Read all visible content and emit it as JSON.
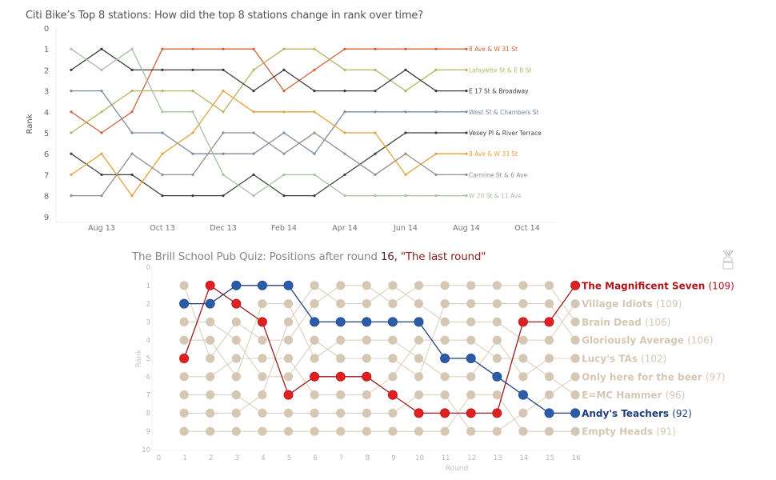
{
  "titles": {
    "top": "Citi Bike’s Top 8 stations: How did the top 8 stations change in rank over time?",
    "bottom_prefix": "The Brill School Pub Quiz: Positions after round ",
    "bottom_round": "16,",
    "bottom_round_name": " \"The last round\""
  },
  "icons": {
    "corner": "trophy-icon"
  },
  "chart_data": [
    {
      "type": "line",
      "title": "Citi Bike’s Top 8 stations: How did the top 8 stations change in rank over time?",
      "xlabel": "",
      "ylabel": "Rank",
      "x": [
        "Jul 13",
        "Aug 13",
        "Sep 13",
        "Oct 13",
        "Nov 13",
        "Dec 13",
        "Jan 14",
        "Feb 14",
        "Mar 14",
        "Apr 14",
        "May 14",
        "Jun 14",
        "Jul 14",
        "Aug 14"
      ],
      "xticks": [
        "Aug 13",
        "Oct 13",
        "Dec 13",
        "Feb 14",
        "Apr 14",
        "Jun 14",
        "Aug 14",
        "Oct 14"
      ],
      "yticks": [
        "0",
        "1",
        "2",
        "3",
        "4",
        "5",
        "6",
        "7",
        "8",
        "9"
      ],
      "ylim": [
        0,
        9
      ],
      "y_reversed": true,
      "grid": false,
      "legend": "end-of-line labels (right)",
      "series": [
        {
          "name": "8 Ave & W 31 St",
          "color": "#d0643a",
          "values": [
            4,
            5,
            4,
            1,
            1,
            1,
            1,
            3,
            2,
            1,
            1,
            1,
            1,
            1
          ]
        },
        {
          "name": "Lafayette St & E 8 St",
          "color": "#b8b35e",
          "values": [
            5,
            4,
            3,
            3,
            3,
            4,
            2,
            1,
            1,
            2,
            2,
            3,
            2,
            2
          ]
        },
        {
          "name": "E 17 St & Broadway",
          "color": "#3a3a3a",
          "values": [
            2,
            1,
            2,
            2,
            2,
            2,
            3,
            2,
            3,
            3,
            3,
            2,
            3,
            3
          ]
        },
        {
          "name": "West St & Chambers St",
          "color": "#7a8aa3",
          "values": [
            3,
            3,
            5,
            5,
            6,
            6,
            6,
            5,
            6,
            4,
            4,
            4,
            4,
            4
          ]
        },
        {
          "name": "Vesey Pl & River Terrace",
          "color": "#36463a",
          "values": [
            6,
            7,
            7,
            8,
            8,
            8,
            7,
            8,
            8,
            7,
            6,
            5,
            5,
            5
          ]
        },
        {
          "name": "8 Ave & W 33 St",
          "color": "#e5a23c",
          "values": [
            7,
            6,
            8,
            6,
            5,
            3,
            4,
            4,
            4,
            5,
            5,
            7,
            6,
            6
          ]
        },
        {
          "name": "Carmine St & 6 Ave",
          "color": "#9a8d83",
          "values": [
            8,
            8,
            6,
            7,
            7,
            5,
            5,
            6,
            5,
            6,
            7,
            6,
            7,
            7
          ]
        },
        {
          "name": "W 20 St & 11 Ave",
          "color": "#a7bfa2",
          "values": [
            1,
            2,
            1,
            4,
            4,
            7,
            8,
            7,
            7,
            8,
            8,
            8,
            8,
            8
          ]
        }
      ]
    },
    {
      "type": "line",
      "title": "The Brill School Pub Quiz: Positions after round 16, \"The last round\"",
      "xlabel": "Round",
      "ylabel": "Rank",
      "x": [
        1,
        2,
        3,
        4,
        5,
        6,
        7,
        8,
        9,
        10,
        11,
        12,
        13,
        14,
        15,
        16
      ],
      "xticks": [
        "0",
        "1",
        "2",
        "3",
        "4",
        "5",
        "6",
        "7",
        "8",
        "9",
        "10",
        "11",
        "12",
        "13",
        "14",
        "15",
        "16"
      ],
      "yticks": [
        "0",
        "1",
        "2",
        "3",
        "4",
        "5",
        "6",
        "7",
        "8",
        "9",
        "10"
      ],
      "xlim": [
        0,
        16
      ],
      "ylim": [
        0,
        10
      ],
      "y_reversed": true,
      "grid": false,
      "legend": "end-of-line labels (right)",
      "default_color": "#d6c7b4",
      "series": [
        {
          "name": "The Magnificent Seven",
          "score": "109",
          "color": "#e02020",
          "label_color": "#b0151a",
          "highlight": true,
          "values": [
            5,
            1,
            2,
            3,
            7,
            6,
            6,
            6,
            7,
            8,
            8,
            8,
            8,
            3,
            3,
            1
          ]
        },
        {
          "name": "Village Idiots",
          "score": "109",
          "color": "#d6c7b4",
          "label_color": "#d6c7b4",
          "highlight": false,
          "values": [
            8,
            8,
            8,
            7,
            3,
            1,
            2,
            2,
            1,
            2,
            3,
            3,
            3,
            4,
            4,
            2
          ]
        },
        {
          "name": "Brain Dead",
          "score": "106",
          "color": "#d6c7b4",
          "label_color": "#d6c7b4",
          "highlight": false,
          "values": [
            1,
            5,
            3,
            4,
            4,
            2,
            1,
            1,
            2,
            1,
            1,
            1,
            1,
            1,
            1,
            3
          ]
        },
        {
          "name": "Gloriously Average",
          "score": "106",
          "color": "#d6c7b4",
          "label_color": "#d6c7b4",
          "highlight": false,
          "values": [
            3,
            3,
            4,
            6,
            6,
            4,
            5,
            5,
            5,
            6,
            2,
            2,
            2,
            2,
            2,
            4
          ]
        },
        {
          "name": "Lucy's TAs",
          "score": "102",
          "color": "#d6c7b4",
          "label_color": "#d6c7b4",
          "highlight": false,
          "values": [
            4,
            4,
            6,
            2,
            2,
            5,
            4,
            4,
            4,
            5,
            6,
            6,
            4,
            6,
            5,
            5
          ]
        },
        {
          "name": "Only here for the beer",
          "score": "97",
          "color": "#d6c7b4",
          "label_color": "#d6c7b4",
          "highlight": false,
          "values": [
            7,
            7,
            7,
            8,
            8,
            8,
            8,
            8,
            8,
            7,
            7,
            9,
            9,
            8,
            7,
            6
          ]
        },
        {
          "name": "E=MC Hammer",
          "score": "96",
          "color": "#d6c7b4",
          "label_color": "#d6c7b4",
          "highlight": false,
          "values": [
            6,
            6,
            5,
            5,
            5,
            7,
            7,
            7,
            6,
            4,
            4,
            4,
            5,
            5,
            6,
            7
          ]
        },
        {
          "name": "Andy's Teachers",
          "score": "92",
          "color": "#2a5ca8",
          "label_color": "#1f3f7a",
          "highlight": true,
          "values": [
            2,
            2,
            1,
            1,
            1,
            3,
            3,
            3,
            3,
            3,
            5,
            5,
            6,
            7,
            8,
            8
          ]
        },
        {
          "name": "Empty Heads",
          "score": "91",
          "color": "#d6c7b4",
          "label_color": "#d6c7b4",
          "highlight": false,
          "values": [
            9,
            9,
            9,
            9,
            9,
            9,
            9,
            9,
            9,
            9,
            9,
            7,
            7,
            9,
            9,
            9
          ]
        }
      ]
    }
  ]
}
